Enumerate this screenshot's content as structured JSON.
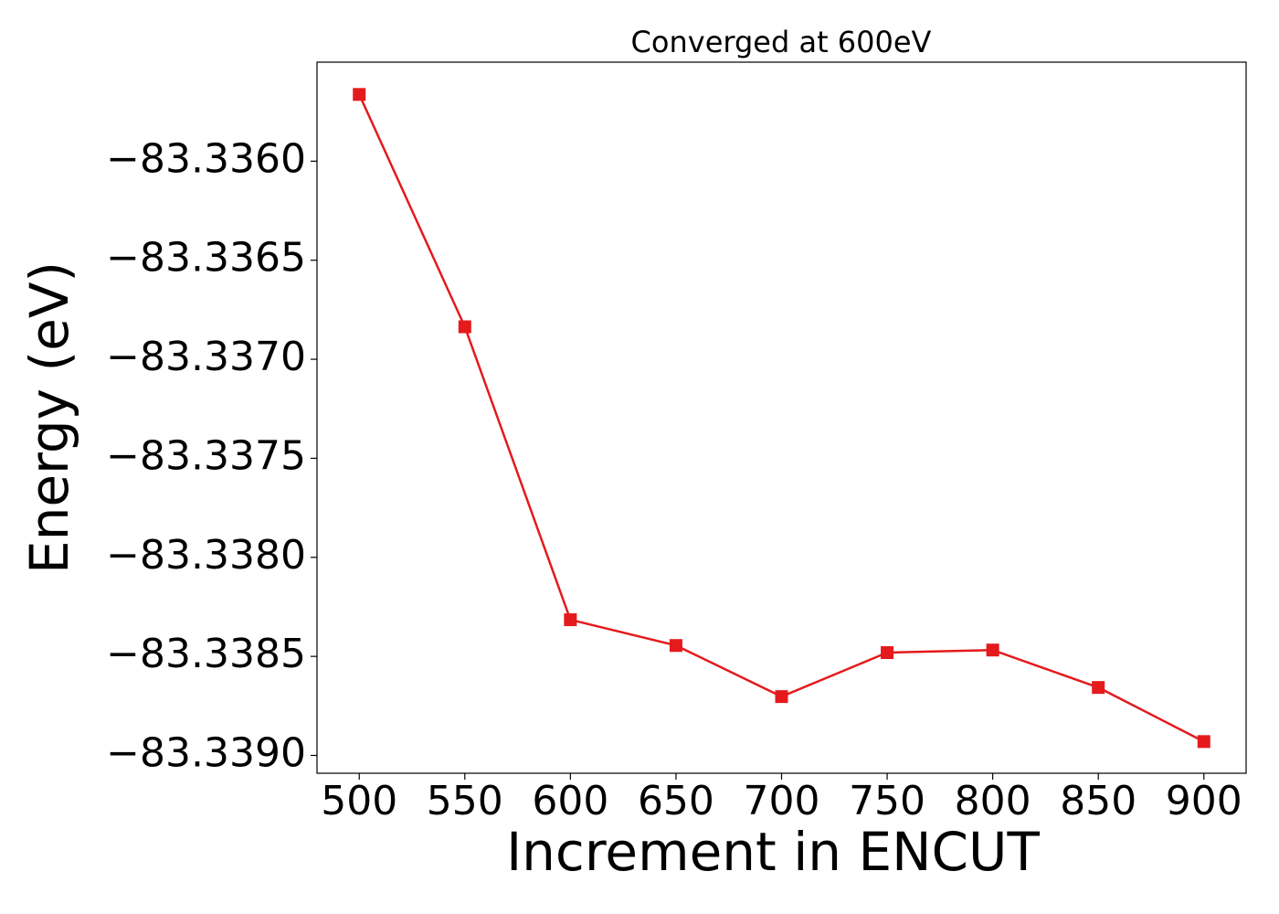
{
  "chart_data": {
    "type": "line",
    "title": "Converged at 600eV",
    "xlabel": "Increment in ENCUT",
    "ylabel": "Energy (eV)",
    "x": [
      500,
      550,
      600,
      650,
      700,
      750,
      800,
      850,
      900
    ],
    "series": [
      {
        "color": "#e41a1c",
        "marker": "square",
        "values": [
          -83.335663,
          -83.336836,
          -83.338315,
          -83.338445,
          -83.338703,
          -83.338481,
          -83.338468,
          -83.338657,
          -83.33893
        ]
      }
    ],
    "xlim": [
      480,
      920
    ],
    "xticks": [
      500,
      550,
      600,
      650,
      700,
      750,
      800,
      850,
      900
    ],
    "ylim": [
      -83.33909,
      -83.3355
    ],
    "yticks": [
      {
        "value": -83.336,
        "label": "−83.3360"
      },
      {
        "value": -83.3365,
        "label": "−83.3365"
      },
      {
        "value": -83.337,
        "label": "−83.3370"
      },
      {
        "value": -83.3375,
        "label": "−83.3375"
      },
      {
        "value": -83.338,
        "label": "−83.3380"
      },
      {
        "value": -83.3385,
        "label": "−83.3385"
      },
      {
        "value": -83.339,
        "label": "−83.3390"
      }
    ]
  }
}
